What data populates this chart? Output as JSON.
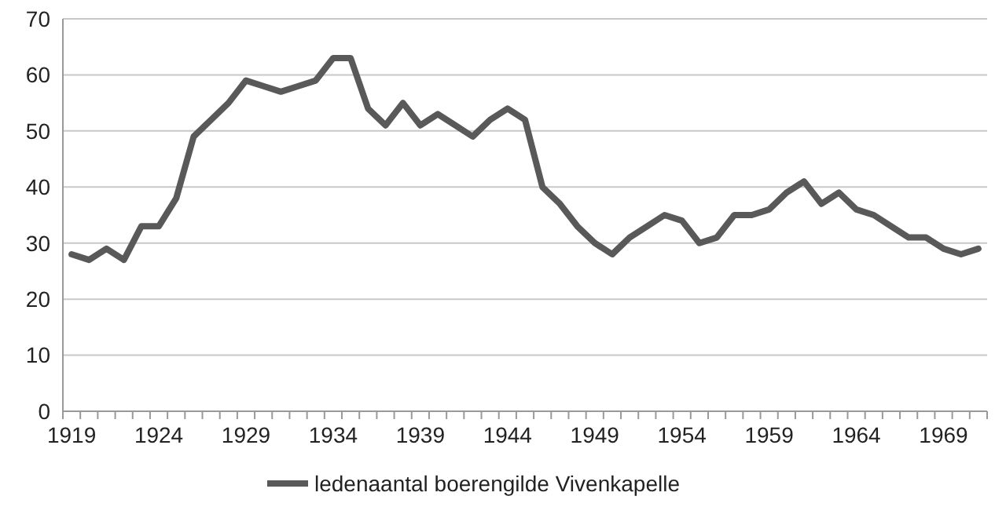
{
  "chart_data": {
    "type": "line",
    "categories": [
      "1919",
      null,
      null,
      null,
      null,
      "1924",
      null,
      null,
      null,
      null,
      "1929",
      null,
      null,
      null,
      null,
      "1934",
      null,
      null,
      null,
      null,
      "1939",
      null,
      null,
      null,
      null,
      "1944",
      null,
      null,
      null,
      null,
      "1949",
      null,
      null,
      null,
      null,
      "1954",
      null,
      null,
      null,
      null,
      "1959",
      null,
      null,
      null,
      null,
      "1964",
      null,
      null,
      null,
      null,
      "1969",
      null,
      null
    ],
    "series": [
      {
        "name": "ledenaantal boerengilde Vivenkapelle",
        "color": "#595959",
        "values": [
          28,
          27,
          29,
          27,
          33,
          33,
          38,
          49,
          52,
          55,
          59,
          58,
          57,
          58,
          59,
          63,
          63,
          54,
          51,
          55,
          51,
          53,
          51,
          49,
          52,
          54,
          52,
          40,
          37,
          33,
          30,
          28,
          31,
          33,
          35,
          34,
          30,
          31,
          35,
          35,
          36,
          39,
          41,
          37,
          39,
          36,
          35,
          33,
          31,
          31,
          29,
          28,
          29
        ]
      }
    ],
    "ylim": [
      0,
      70
    ],
    "yticks": [
      0,
      10,
      20,
      30,
      40,
      50,
      60,
      70
    ],
    "grid": "y",
    "legend": "bottom",
    "line_style": "solid",
    "marker": "none"
  }
}
